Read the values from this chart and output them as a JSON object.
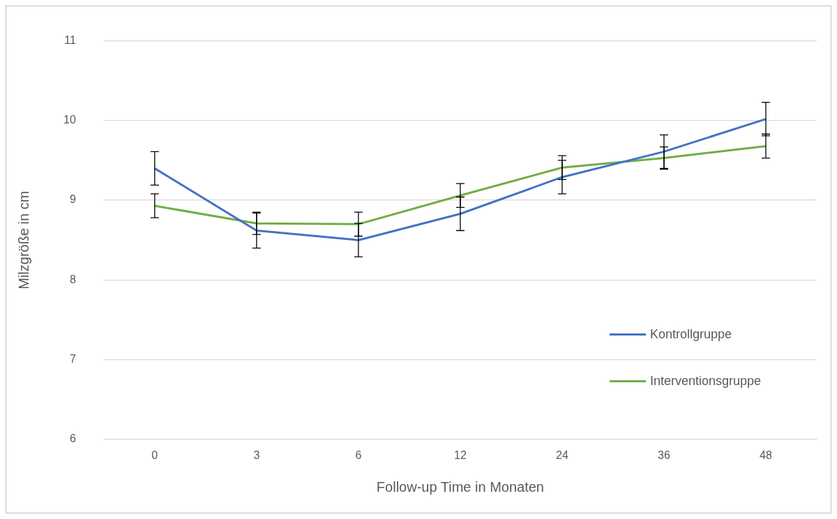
{
  "chart_data": {
    "type": "line",
    "xlabel": "Follow-up Time in Monaten",
    "ylabel": "Milzgröße in cm",
    "categories": [
      "0",
      "3",
      "6",
      "12",
      "24",
      "36",
      "48"
    ],
    "series": [
      {
        "name": "Kontrollgruppe",
        "color": "#4472c4",
        "values": [
          9.4,
          8.62,
          8.5,
          8.83,
          9.29,
          9.61,
          10.02
        ],
        "errors": [
          0.21,
          0.22,
          0.21,
          0.21,
          0.21,
          0.21,
          0.21
        ]
      },
      {
        "name": "Interventionsgruppe",
        "color": "#70ad47",
        "values": [
          8.93,
          8.71,
          8.7,
          9.06,
          9.41,
          9.53,
          9.68
        ],
        "errors": [
          0.15,
          0.14,
          0.15,
          0.15,
          0.15,
          0.14,
          0.15
        ]
      }
    ],
    "ylim": [
      6,
      11
    ],
    "yticks": [
      6,
      7,
      8,
      9,
      10,
      11
    ],
    "grid": "y",
    "legend": "right",
    "marker": "none",
    "line_style": "solid"
  }
}
